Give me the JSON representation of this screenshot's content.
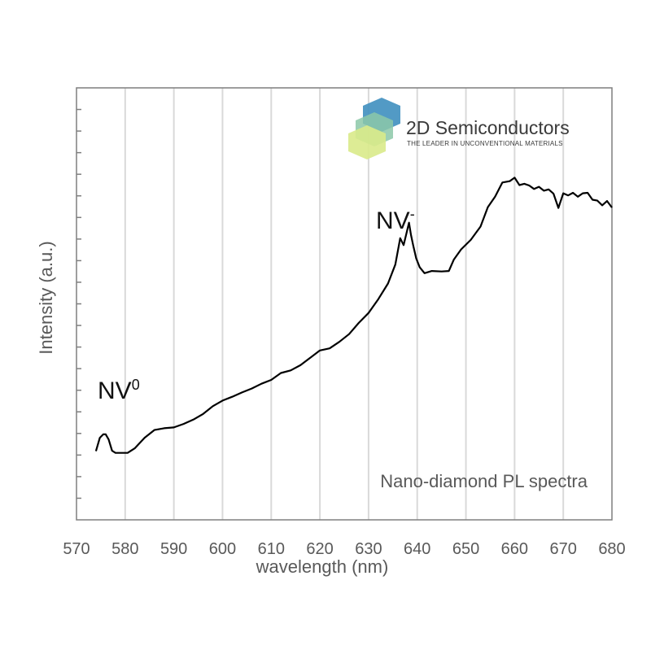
{
  "chart_data": {
    "type": "line",
    "title": "",
    "xlabel": "wavelength (nm)",
    "ylabel": "Intensity (a.u.)",
    "xlim": [
      570,
      680
    ],
    "ylim": [
      0,
      1
    ],
    "xticks": [
      570,
      580,
      590,
      600,
      610,
      620,
      630,
      640,
      650,
      660,
      670,
      680
    ],
    "y_tick_count": 20,
    "grid": "vertical",
    "series": [
      {
        "color": "#000000",
        "x": [
          574,
          574.8,
          575.5,
          576,
          576.6,
          577.3,
          578,
          579,
          580.5,
          582,
          584,
          586,
          588,
          590,
          592,
          594,
          596,
          598,
          600,
          602,
          604,
          606,
          608,
          610,
          612,
          614,
          616,
          618,
          620,
          622,
          624,
          626,
          628,
          630,
          632,
          634,
          635.5,
          636.5,
          637.2,
          637.8,
          638.3,
          638.7,
          639.2,
          639.8,
          640.5,
          641.5,
          643,
          645,
          646.5,
          647.5,
          649,
          651,
          653,
          654.5,
          656,
          657.5,
          659,
          660,
          661,
          662,
          663,
          664,
          665,
          666,
          667,
          668,
          669,
          670,
          671,
          672,
          673,
          674,
          675,
          676,
          677,
          678,
          679,
          680
        ],
        "y": [
          0.159,
          0.19,
          0.198,
          0.198,
          0.186,
          0.16,
          0.155,
          0.155,
          0.155,
          0.166,
          0.19,
          0.208,
          0.212,
          0.214,
          0.222,
          0.232,
          0.245,
          0.263,
          0.276,
          0.285,
          0.295,
          0.304,
          0.315,
          0.324,
          0.34,
          0.346,
          0.358,
          0.375,
          0.392,
          0.397,
          0.412,
          0.43,
          0.456,
          0.479,
          0.511,
          0.547,
          0.591,
          0.652,
          0.636,
          0.664,
          0.688,
          0.66,
          0.634,
          0.605,
          0.585,
          0.571,
          0.576,
          0.575,
          0.576,
          0.602,
          0.626,
          0.648,
          0.679,
          0.724,
          0.748,
          0.781,
          0.784,
          0.792,
          0.775,
          0.778,
          0.774,
          0.766,
          0.771,
          0.762,
          0.765,
          0.755,
          0.722,
          0.756,
          0.751,
          0.757,
          0.748,
          0.756,
          0.757,
          0.741,
          0.739,
          0.728,
          0.738,
          0.723
        ]
      }
    ],
    "annotations": [
      {
        "text": "NV",
        "sup": "0",
        "x": 575.5,
        "y": 0.255
      },
      {
        "text": "NV",
        "sup": "-",
        "x": 636,
        "y": 0.675
      },
      {
        "text": "Nano-diamond PL spectra",
        "position": "bottom-right"
      }
    ],
    "logo": {
      "name": "2D Semiconductors",
      "tagline": "THE LEADER IN UNCONVENTIONAL MATERIALS",
      "colors": [
        "#3f8fbf",
        "#8cc8a8",
        "#d9ea8a"
      ]
    }
  }
}
